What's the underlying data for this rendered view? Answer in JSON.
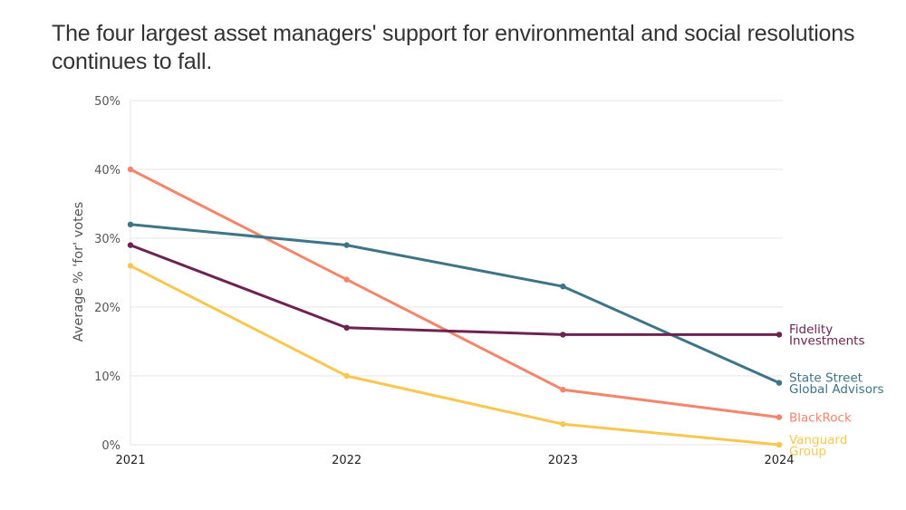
{
  "chart_data": {
    "type": "line",
    "title": "The four largest asset managers' support for environmental and social resolutions continues to fall.",
    "xlabel": "",
    "ylabel": "Average % 'for' votes",
    "x": [
      "2021",
      "2022",
      "2023",
      "2024"
    ],
    "ylim": [
      0,
      50
    ],
    "yticks": [
      0,
      10,
      20,
      30,
      40,
      50
    ],
    "ytick_labels": [
      "0%",
      "10%",
      "20%",
      "30%",
      "40%",
      "50%"
    ],
    "grid": true,
    "legend_placement": "right end labels",
    "series": [
      {
        "name": "BlackRock",
        "label_lines": [
          "BlackRock"
        ],
        "color": "#f4846a",
        "values": [
          40,
          24,
          8,
          4
        ]
      },
      {
        "name": "State Street Global Advisors",
        "label_lines": [
          "State Street",
          "Global Advisors"
        ],
        "color": "#3e7487",
        "values": [
          32,
          29,
          23,
          9
        ]
      },
      {
        "name": "Fidelity Investments",
        "label_lines": [
          "Fidelity",
          "Investments"
        ],
        "color": "#6c2352",
        "values": [
          29,
          17,
          16,
          16
        ]
      },
      {
        "name": "Vanguard Group",
        "label_lines": [
          "Vanguard",
          "Group"
        ],
        "color": "#f9c74f",
        "values": [
          26,
          10,
          3,
          0
        ]
      }
    ]
  }
}
